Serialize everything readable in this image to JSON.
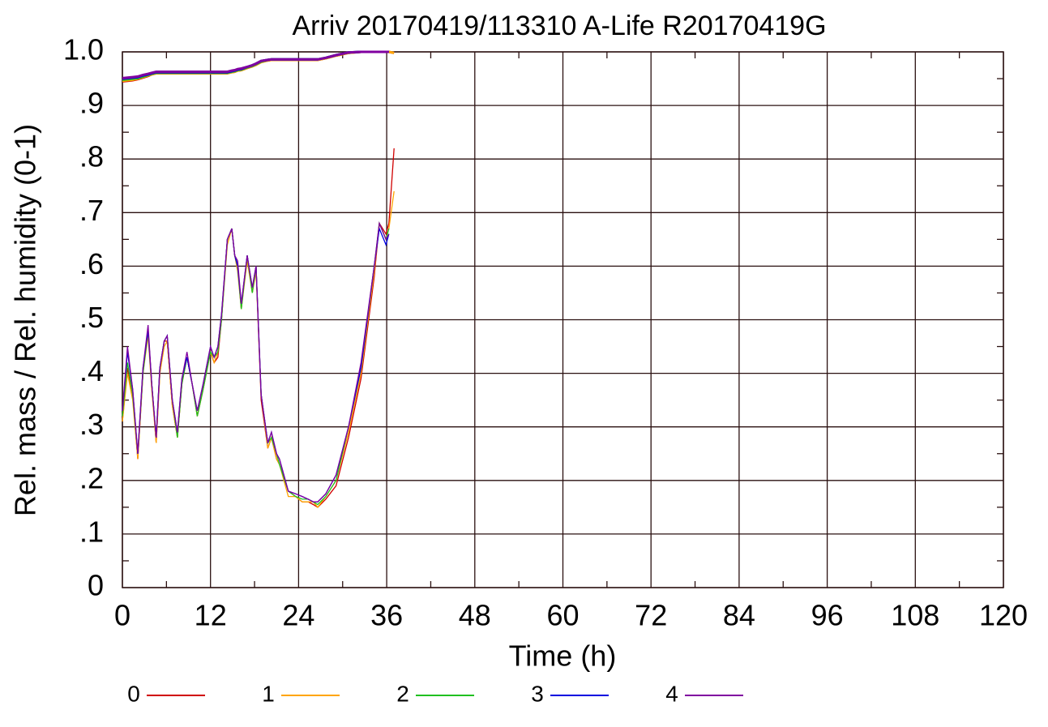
{
  "chart_data": {
    "type": "line",
    "title": "Arriv 20170419/113310 A-Life R20170419G",
    "xlabel": "Time (h)",
    "ylabel": "Rel. mass / Rel. humidity (0-1)",
    "x": [
      0,
      0.7,
      1.4,
      2.1,
      2.8,
      3.5,
      4.0,
      4.6,
      5.1,
      5.7,
      6.1,
      6.8,
      7.5,
      8.1,
      8.8,
      9.5,
      10.2,
      11,
      12,
      12.5,
      13,
      13.5,
      14.3,
      14.9,
      15.3,
      15.7,
      16.2,
      17,
      17.7,
      18.2,
      18.9,
      19.8,
      20.3,
      21,
      21.4,
      22.6,
      23.6,
      24.5,
      25.3,
      26,
      26.6,
      27.7,
      29.1,
      30.8,
      32.5,
      34.3,
      35,
      35.9,
      36.3,
      37
    ],
    "series": [
      {
        "name": "0",
        "color": "#d00000",
        "values": [
          0.31,
          0.41,
          0.36,
          0.24,
          0.4,
          0.48,
          0.38,
          0.27,
          0.4,
          0.46,
          0.46,
          0.34,
          0.28,
          0.38,
          0.43,
          0.38,
          0.32,
          0.37,
          0.44,
          0.42,
          0.43,
          0.5,
          0.65,
          0.67,
          0.62,
          0.6,
          0.52,
          0.62,
          0.55,
          0.6,
          0.35,
          0.26,
          0.28,
          0.24,
          0.23,
          0.18,
          0.17,
          0.16,
          0.16,
          0.155,
          0.15,
          0.165,
          0.19,
          0.28,
          0.39,
          0.58,
          0.68,
          0.66,
          0.68,
          0.82
        ],
        "mass": [
          0.945,
          0.946,
          0.947,
          0.949,
          0.952,
          0.955,
          0.958,
          0.96,
          0.96,
          0.96,
          0.96,
          0.96,
          0.96,
          0.96,
          0.96,
          0.96,
          0.96,
          0.96,
          0.96,
          0.96,
          0.96,
          0.96,
          0.96,
          0.962,
          0.963,
          0.965,
          0.966,
          0.97,
          0.973,
          0.976,
          0.981,
          0.984,
          0.985,
          0.985,
          0.985,
          0.985,
          0.985,
          0.985,
          0.985,
          0.985,
          0.985,
          0.988,
          0.993,
          0.998,
          1,
          1,
          1,
          1,
          1,
          0.998
        ]
      },
      {
        "name": "1",
        "color": "#ffa500",
        "values": [
          0.31,
          0.4,
          0.35,
          0.24,
          0.4,
          0.47,
          0.37,
          0.27,
          0.4,
          0.45,
          0.46,
          0.34,
          0.28,
          0.38,
          0.43,
          0.38,
          0.32,
          0.37,
          0.44,
          0.42,
          0.44,
          0.5,
          0.64,
          0.67,
          0.62,
          0.59,
          0.52,
          0.61,
          0.55,
          0.59,
          0.36,
          0.26,
          0.28,
          0.24,
          0.23,
          0.17,
          0.17,
          0.16,
          0.16,
          0.16,
          0.15,
          0.17,
          0.2,
          0.29,
          0.4,
          0.59,
          0.68,
          0.65,
          0.67,
          0.74
        ],
        "mass": [
          0.946,
          0.947,
          0.948,
          0.95,
          0.953,
          0.956,
          0.958,
          0.96,
          0.96,
          0.96,
          0.96,
          0.96,
          0.96,
          0.96,
          0.96,
          0.96,
          0.96,
          0.96,
          0.96,
          0.96,
          0.96,
          0.96,
          0.96,
          0.962,
          0.963,
          0.965,
          0.966,
          0.97,
          0.973,
          0.976,
          0.981,
          0.984,
          0.985,
          0.985,
          0.985,
          0.985,
          0.985,
          0.985,
          0.985,
          0.985,
          0.985,
          0.988,
          0.993,
          0.998,
          1,
          1,
          1,
          1,
          1,
          0.998
        ]
      },
      {
        "name": "2",
        "color": "#20c020",
        "values": [
          0.32,
          0.42,
          0.36,
          0.25,
          0.4,
          0.48,
          0.38,
          0.28,
          0.41,
          0.46,
          0.47,
          0.35,
          0.28,
          0.38,
          0.43,
          0.38,
          0.32,
          0.37,
          0.44,
          0.43,
          0.44,
          0.5,
          0.65,
          0.67,
          0.62,
          0.6,
          0.52,
          0.62,
          0.55,
          0.6,
          0.36,
          0.27,
          0.28,
          0.25,
          0.23,
          0.18,
          0.17,
          0.165,
          0.165,
          0.16,
          0.155,
          0.17,
          0.2,
          0.3,
          0.41,
          0.6,
          0.68,
          0.65,
          0.67,
          null
        ],
        "mass": [
          0.948,
          0.949,
          0.95,
          0.951,
          0.954,
          0.957,
          0.959,
          0.961,
          0.961,
          0.961,
          0.961,
          0.961,
          0.961,
          0.961,
          0.961,
          0.961,
          0.961,
          0.961,
          0.961,
          0.961,
          0.961,
          0.961,
          0.961,
          0.963,
          0.964,
          0.966,
          0.967,
          0.971,
          0.974,
          0.977,
          0.982,
          0.985,
          0.986,
          0.986,
          0.986,
          0.986,
          0.986,
          0.986,
          0.986,
          0.986,
          0.986,
          0.989,
          0.994,
          0.999,
          1,
          1,
          1,
          1,
          1,
          null
        ]
      },
      {
        "name": "3",
        "color": "#0000e0",
        "values": [
          0.33,
          0.44,
          0.37,
          0.25,
          0.41,
          0.48,
          0.38,
          0.28,
          0.41,
          0.46,
          0.47,
          0.35,
          0.29,
          0.39,
          0.43,
          0.38,
          0.33,
          0.38,
          0.45,
          0.43,
          0.45,
          0.51,
          0.65,
          0.67,
          0.62,
          0.6,
          0.53,
          0.62,
          0.56,
          0.6,
          0.36,
          0.27,
          0.29,
          0.25,
          0.24,
          0.18,
          0.175,
          0.17,
          0.165,
          0.16,
          0.16,
          0.175,
          0.21,
          0.3,
          0.41,
          0.6,
          0.67,
          0.64,
          0.66,
          null
        ],
        "mass": [
          0.95,
          0.951,
          0.952,
          0.953,
          0.956,
          0.958,
          0.96,
          0.962,
          0.962,
          0.962,
          0.962,
          0.962,
          0.962,
          0.962,
          0.962,
          0.962,
          0.962,
          0.962,
          0.962,
          0.962,
          0.962,
          0.962,
          0.962,
          0.964,
          0.965,
          0.967,
          0.968,
          0.972,
          0.975,
          0.978,
          0.983,
          0.985,
          0.986,
          0.986,
          0.986,
          0.986,
          0.986,
          0.986,
          0.986,
          0.986,
          0.986,
          0.989,
          0.994,
          0.999,
          1,
          1,
          1,
          1,
          1,
          null
        ]
      },
      {
        "name": "4",
        "color": "#8000a0",
        "values": [
          0.33,
          0.45,
          0.37,
          0.25,
          0.41,
          0.49,
          0.38,
          0.28,
          0.41,
          0.46,
          0.47,
          0.35,
          0.29,
          0.39,
          0.44,
          0.38,
          0.33,
          0.38,
          0.45,
          0.43,
          0.45,
          0.51,
          0.65,
          0.67,
          0.62,
          0.61,
          0.53,
          0.62,
          0.56,
          0.6,
          0.36,
          0.27,
          0.29,
          0.25,
          0.24,
          0.18,
          0.175,
          0.17,
          0.165,
          0.16,
          0.16,
          0.175,
          0.21,
          0.3,
          0.42,
          0.6,
          0.68,
          0.65,
          0.66,
          null
        ],
        "mass": [
          0.951,
          0.952,
          0.953,
          0.954,
          0.957,
          0.959,
          0.961,
          0.963,
          0.963,
          0.963,
          0.963,
          0.963,
          0.963,
          0.963,
          0.963,
          0.963,
          0.963,
          0.963,
          0.963,
          0.963,
          0.963,
          0.963,
          0.963,
          0.965,
          0.966,
          0.968,
          0.969,
          0.972,
          0.975,
          0.978,
          0.983,
          0.985,
          0.986,
          0.986,
          0.986,
          0.986,
          0.986,
          0.986,
          0.986,
          0.986,
          0.986,
          0.989,
          0.994,
          0.999,
          1,
          1,
          1,
          1,
          1,
          null
        ]
      }
    ],
    "xlim": [
      0,
      120
    ],
    "xticks": [
      0,
      12,
      24,
      36,
      48,
      60,
      72,
      84,
      96,
      108,
      120
    ],
    "ylim": [
      0,
      1
    ],
    "yticks": [
      0,
      {
        "value": 0.1,
        "label": ".1"
      },
      {
        "value": 0.2,
        "label": ".2"
      },
      {
        "value": 0.3,
        "label": ".3"
      },
      {
        "value": 0.4,
        "label": ".4"
      },
      {
        "value": 0.5,
        "label": ".5"
      },
      {
        "value": 0.6,
        "label": ".6"
      },
      {
        "value": 0.7,
        "label": ".7"
      },
      {
        "value": 0.8,
        "label": ".8"
      },
      {
        "value": 0.9,
        "label": ".9"
      },
      {
        "value": 1,
        "label": "1.0"
      }
    ],
    "grid": true,
    "legend": "bottom"
  }
}
